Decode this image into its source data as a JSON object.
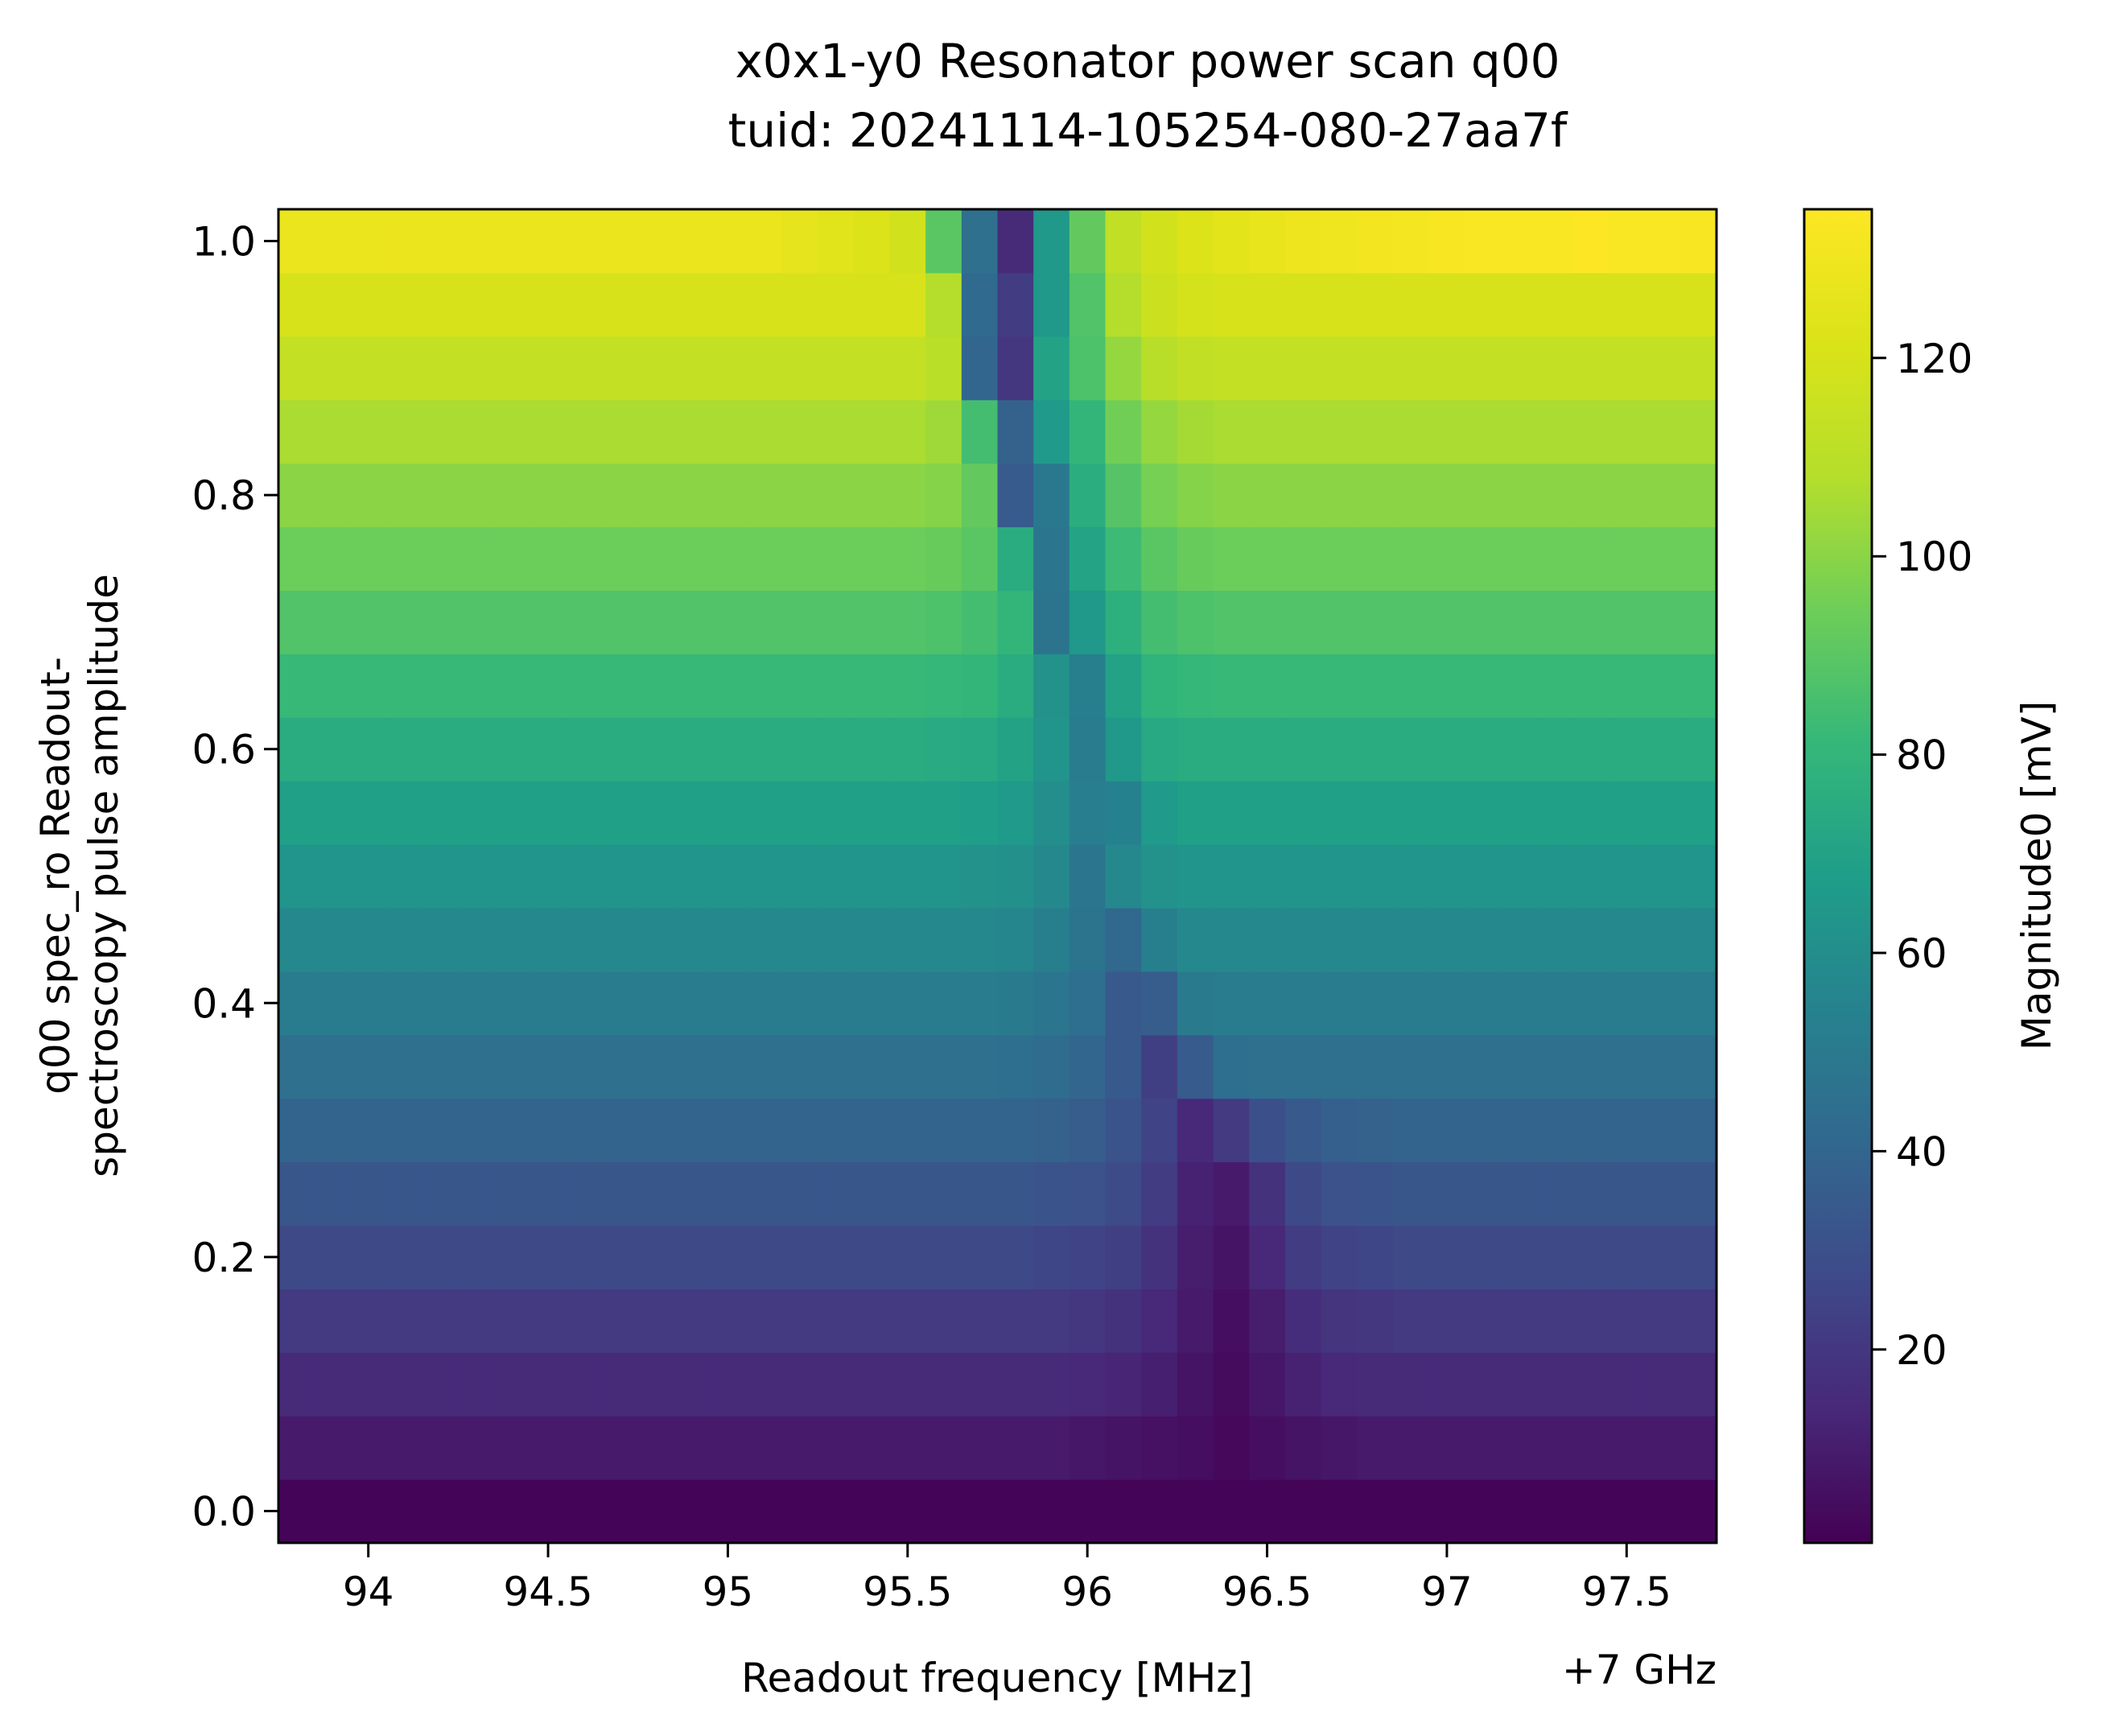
{
  "chart_data": {
    "type": "heatmap",
    "title": "x0x1-y0 Resonator power scan q00",
    "subtitle": "tuid: 20241114-105254-080-27aa7f",
    "xlabel": "Readout frequency [MHz]",
    "x_offset_label": "+7 GHz",
    "ylabel_lines": [
      "q00 spec_ro Readout-",
      "spectroscopy pulse amplitude"
    ],
    "colorbar_label": "Magnitude0 [mV]",
    "colormap": "viridis",
    "x_ticks": [
      94,
      94.5,
      95,
      95.5,
      96,
      96.5,
      97,
      97.5
    ],
    "x_tick_labels": [
      "94",
      "94.5",
      "95",
      "95.5",
      "96",
      "96.5",
      "97",
      "97.5"
    ],
    "y_ticks": [
      0.0,
      0.2,
      0.4,
      0.6,
      0.8,
      1.0
    ],
    "y_tick_labels": [
      "0.0",
      "0.2",
      "0.4",
      "0.6",
      "0.8",
      "1.0"
    ],
    "colorbar_ticks": [
      20,
      40,
      60,
      80,
      100,
      120
    ],
    "colorbar_tick_labels": [
      "20",
      "40",
      "60",
      "80",
      "100",
      "120"
    ],
    "xlim": [
      93.75,
      97.75
    ],
    "ylim": [
      -0.025,
      1.025
    ],
    "clim": [
      0.5,
      135
    ],
    "x": [
      93.8,
      93.9,
      94.0,
      94.1,
      94.2,
      94.3,
      94.4,
      94.5,
      94.6,
      94.7,
      94.8,
      94.9,
      95.0,
      95.1,
      95.2,
      95.3,
      95.4,
      95.5,
      95.6,
      95.7,
      95.8,
      95.9,
      96.0,
      96.1,
      96.2,
      96.3,
      96.4,
      96.5,
      96.6,
      96.7,
      96.8,
      96.9,
      97.0,
      97.1,
      97.2,
      97.3,
      97.4,
      97.5,
      97.6,
      97.7
    ],
    "y": [
      0.0,
      0.05,
      0.1,
      0.15,
      0.2,
      0.25,
      0.3,
      0.35,
      0.4,
      0.45,
      0.5,
      0.55,
      0.6,
      0.65,
      0.7,
      0.75,
      0.8,
      0.85,
      0.9,
      0.95,
      1.0
    ],
    "z_by_amplitude": [
      [
        2,
        2,
        2,
        2,
        2,
        2,
        2,
        2,
        2,
        2,
        2,
        2,
        2,
        2,
        2,
        2,
        2,
        2,
        2,
        2,
        2,
        2,
        2,
        2,
        2,
        2,
        2,
        2,
        2,
        2,
        2,
        2,
        2,
        2,
        2,
        2,
        2,
        2,
        2,
        2
      ],
      [
        9,
        9,
        9,
        9,
        9,
        9,
        9,
        9,
        9,
        9,
        9,
        9,
        9,
        9,
        9,
        9,
        9,
        9,
        9,
        9,
        9,
        9,
        8,
        7,
        6,
        5,
        3,
        5,
        7,
        8,
        9,
        9,
        9,
        9,
        9,
        9,
        9,
        9,
        9,
        9
      ],
      [
        15,
        15,
        15,
        15,
        15,
        15,
        15,
        15,
        15,
        15,
        15,
        15,
        15,
        15,
        15,
        15,
        15,
        15,
        15,
        15,
        15,
        15,
        14,
        13,
        11,
        7,
        4,
        8,
        12,
        14,
        15,
        15,
        15,
        15,
        15,
        15,
        15,
        15,
        15,
        15
      ],
      [
        21,
        21,
        21,
        21,
        21,
        21,
        21,
        21,
        21,
        21,
        21,
        21,
        21,
        21,
        21,
        21,
        21,
        21,
        21,
        21,
        21,
        21,
        20,
        18,
        14,
        9,
        5,
        10,
        16,
        19,
        20,
        21,
        21,
        21,
        21,
        21,
        21,
        21,
        21,
        21
      ],
      [
        27,
        27,
        27,
        27,
        27,
        27,
        27,
        27,
        27,
        27,
        27,
        27,
        27,
        27,
        27,
        27,
        27,
        27,
        27,
        27,
        27,
        26,
        25,
        23,
        18,
        10,
        7,
        14,
        22,
        25,
        26,
        27,
        27,
        27,
        27,
        27,
        27,
        27,
        27,
        27
      ],
      [
        33,
        33,
        33,
        33,
        33,
        33,
        33,
        33,
        33,
        33,
        33,
        33,
        33,
        33,
        33,
        33,
        33,
        33,
        33,
        33,
        33,
        32,
        31,
        28,
        22,
        12,
        9,
        18,
        27,
        31,
        32,
        33,
        33,
        33,
        33,
        33,
        33,
        33,
        33,
        33
      ],
      [
        39,
        39,
        39,
        39,
        39,
        39,
        39,
        39,
        39,
        39,
        39,
        39,
        39,
        39,
        39,
        39,
        39,
        39,
        39,
        39,
        39,
        38,
        36,
        32,
        25,
        14,
        21,
        30,
        34,
        37,
        38,
        39,
        39,
        39,
        39,
        39,
        39,
        39,
        39,
        39
      ],
      [
        45,
        45,
        45,
        45,
        45,
        45,
        45,
        45,
        45,
        45,
        45,
        45,
        45,
        45,
        45,
        45,
        45,
        45,
        45,
        45,
        44,
        43,
        40,
        34,
        23,
        35,
        44,
        45,
        45,
        45,
        45,
        45,
        45,
        45,
        45,
        45,
        45,
        45,
        45,
        45
      ],
      [
        51,
        51,
        51,
        51,
        51,
        51,
        51,
        51,
        51,
        51,
        51,
        51,
        51,
        51,
        51,
        51,
        51,
        51,
        51,
        51,
        50,
        48,
        44,
        34,
        36,
        50,
        51,
        51,
        51,
        51,
        51,
        51,
        51,
        51,
        51,
        51,
        51,
        51,
        51,
        51
      ],
      [
        57,
        57,
        57,
        57,
        57,
        57,
        57,
        57,
        57,
        57,
        57,
        57,
        57,
        57,
        57,
        57,
        57,
        57,
        57,
        57,
        56,
        53,
        47,
        41,
        53,
        57,
        57,
        57,
        57,
        57,
        57,
        57,
        57,
        57,
        57,
        57,
        57,
        57,
        57,
        57
      ],
      [
        63,
        63,
        63,
        63,
        63,
        63,
        63,
        63,
        63,
        63,
        63,
        63,
        63,
        63,
        63,
        63,
        63,
        63,
        63,
        62,
        61,
        57,
        48,
        57,
        62,
        63,
        63,
        63,
        63,
        63,
        63,
        63,
        63,
        63,
        63,
        63,
        63,
        63,
        63,
        63
      ],
      [
        69,
        69,
        69,
        69,
        69,
        69,
        69,
        69,
        69,
        69,
        69,
        69,
        69,
        69,
        69,
        69,
        69,
        69,
        69,
        68,
        66,
        60,
        52,
        54,
        66,
        69,
        69,
        69,
        69,
        69,
        69,
        69,
        69,
        69,
        69,
        69,
        69,
        69,
        69,
        69
      ],
      [
        75,
        75,
        75,
        75,
        75,
        75,
        75,
        75,
        75,
        75,
        75,
        75,
        75,
        75,
        75,
        75,
        75,
        75,
        74,
        73,
        70,
        63,
        51,
        65,
        73,
        75,
        75,
        75,
        75,
        75,
        75,
        75,
        75,
        75,
        75,
        75,
        75,
        75,
        75,
        75
      ],
      [
        82,
        82,
        82,
        82,
        82,
        82,
        82,
        82,
        82,
        82,
        82,
        82,
        82,
        82,
        82,
        82,
        82,
        82,
        81,
        80,
        75,
        62,
        53,
        70,
        79,
        81,
        82,
        82,
        82,
        82,
        82,
        82,
        82,
        82,
        82,
        82,
        82,
        82,
        82,
        82
      ],
      [
        88,
        88,
        88,
        88,
        88,
        88,
        88,
        88,
        88,
        88,
        88,
        88,
        88,
        88,
        88,
        88,
        88,
        88,
        87,
        85,
        80,
        47,
        65,
        77,
        85,
        87,
        88,
        88,
        88,
        88,
        88,
        88,
        88,
        88,
        88,
        88,
        88,
        88,
        88,
        88
      ],
      [
        94,
        94,
        94,
        94,
        94,
        94,
        94,
        94,
        94,
        94,
        94,
        94,
        94,
        94,
        94,
        94,
        94,
        94,
        93,
        90,
        75,
        48,
        71,
        83,
        90,
        93,
        94,
        94,
        94,
        94,
        94,
        94,
        94,
        94,
        94,
        94,
        94,
        94,
        94,
        94
      ],
      [
        100,
        100,
        100,
        100,
        100,
        100,
        100,
        100,
        100,
        100,
        100,
        100,
        100,
        100,
        100,
        100,
        100,
        100,
        99,
        92,
        35,
        49,
        76,
        89,
        96,
        99,
        100,
        100,
        100,
        100,
        100,
        100,
        100,
        100,
        100,
        100,
        100,
        100,
        100,
        100
      ],
      [
        106,
        106,
        106,
        106,
        106,
        106,
        106,
        106,
        106,
        106,
        106,
        106,
        106,
        106,
        106,
        106,
        106,
        106,
        104,
        85,
        38,
        66,
        80,
        95,
        102,
        105,
        106,
        106,
        106,
        106,
        106,
        106,
        106,
        106,
        106,
        106,
        106,
        106,
        106,
        106
      ],
      [
        113,
        113,
        113,
        113,
        113,
        113,
        113,
        113,
        113,
        113,
        113,
        113,
        113,
        113,
        113,
        113,
        113,
        113,
        110,
        40,
        20,
        70,
        87,
        102,
        109,
        112,
        113,
        113,
        113,
        113,
        113,
        113,
        113,
        113,
        113,
        113,
        113,
        113,
        113,
        113
      ],
      [
        120,
        120,
        120,
        120,
        120,
        120,
        120,
        120,
        120,
        120,
        120,
        120,
        120,
        120,
        120,
        120,
        120,
        120,
        108,
        42,
        22,
        65,
        88,
        108,
        116,
        119,
        120,
        120,
        120,
        120,
        120,
        120,
        120,
        120,
        120,
        120,
        120,
        120,
        120,
        120
      ],
      [
        128,
        128,
        128,
        128,
        128,
        128,
        128,
        128,
        128,
        128,
        128,
        128,
        128,
        128,
        126,
        124,
        122,
        118,
        90,
        45,
        15,
        65,
        92,
        112,
        118,
        122,
        125,
        127,
        129,
        130,
        131,
        132,
        133,
        134,
        134,
        134,
        135,
        134,
        134,
        133
      ]
    ]
  }
}
